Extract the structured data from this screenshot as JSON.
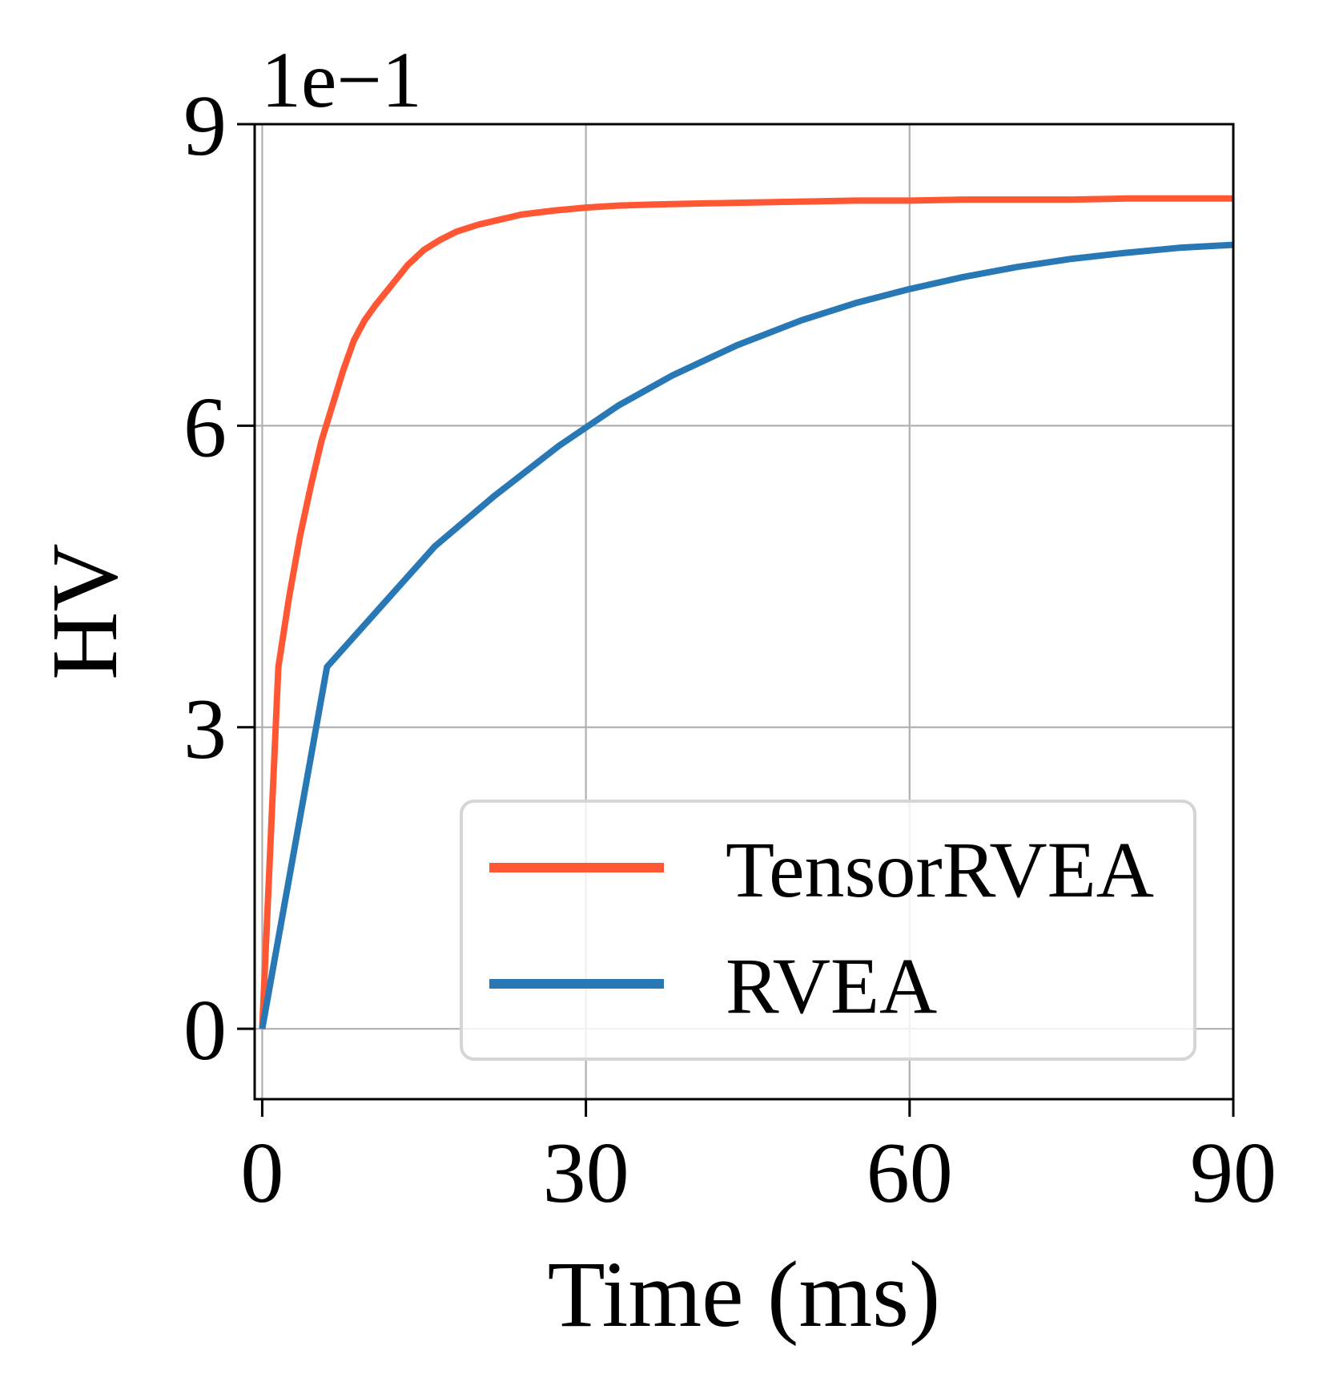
{
  "chart_data": {
    "type": "line",
    "title": "",
    "xlabel": "Time (ms)",
    "ylabel": "HV",
    "y_offset_text": "1e−1",
    "xlim": [
      -0.7,
      90
    ],
    "ylim": [
      -0.7,
      9
    ],
    "xticks": [
      0,
      30,
      60,
      90
    ],
    "xtick_labels": [
      "0",
      "30",
      "60",
      "90"
    ],
    "yticks": [
      0,
      3,
      6,
      9
    ],
    "ytick_labels": [
      "0",
      "3",
      "6",
      "9"
    ],
    "grid": true,
    "legend_position": "lower-right",
    "series": [
      {
        "name": "TensorRVEA",
        "color": "#FF5733",
        "x": [
          0,
          1.5,
          2.5,
          3.5,
          4.5,
          5.5,
          6.5,
          7.5,
          8.5,
          9.5,
          10.5,
          12,
          13.5,
          15,
          16.5,
          18,
          20,
          22,
          24,
          27,
          30,
          33,
          36,
          40,
          45,
          50,
          55,
          60,
          65,
          70,
          75,
          80,
          85,
          90
        ],
        "y": [
          0.0,
          3.6,
          4.3,
          4.9,
          5.4,
          5.85,
          6.2,
          6.55,
          6.85,
          7.05,
          7.2,
          7.4,
          7.6,
          7.75,
          7.85,
          7.93,
          8.0,
          8.05,
          8.1,
          8.14,
          8.17,
          8.19,
          8.2,
          8.21,
          8.22,
          8.23,
          8.24,
          8.24,
          8.25,
          8.25,
          8.25,
          8.26,
          8.26,
          8.26
        ]
      },
      {
        "name": "RVEA",
        "color": "#2878B5",
        "x": [
          0,
          6,
          11,
          16,
          21.5,
          27.5,
          33,
          38,
          44,
          50,
          55,
          60,
          65,
          70,
          75,
          80,
          85,
          90
        ],
        "y": [
          0.0,
          3.6,
          4.2,
          4.8,
          5.3,
          5.8,
          6.2,
          6.5,
          6.8,
          7.05,
          7.22,
          7.36,
          7.48,
          7.58,
          7.66,
          7.72,
          7.77,
          7.8
        ]
      }
    ]
  }
}
